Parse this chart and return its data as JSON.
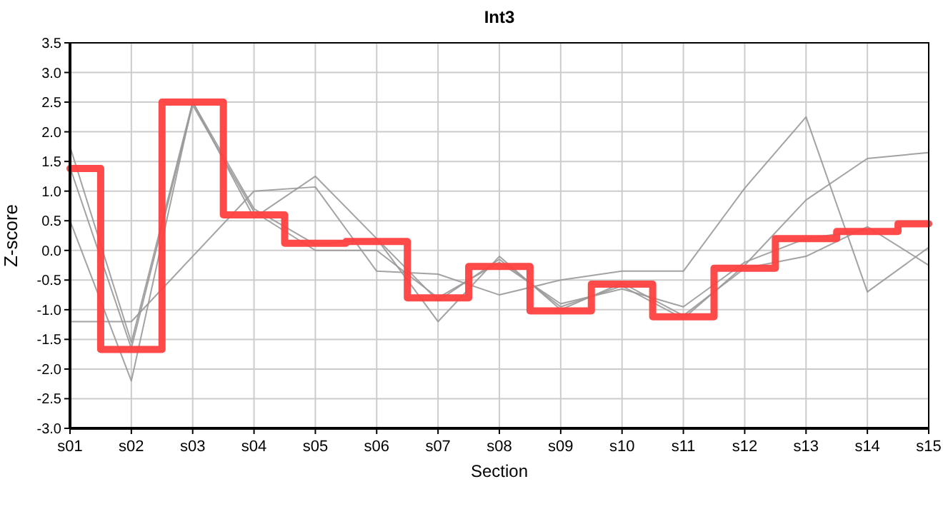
{
  "chart_data": {
    "type": "line",
    "title": "Int3",
    "xlabel": "Section",
    "ylabel": "Z-score",
    "categories": [
      "s01",
      "s02",
      "s03",
      "s04",
      "s05",
      "s06",
      "s07",
      "s08",
      "s09",
      "s10",
      "s11",
      "s12",
      "s13",
      "s14",
      "s15"
    ],
    "series": [
      {
        "color": "#999999",
        "values": [
          1.75,
          -1.55,
          2.5,
          0.7,
          0.1,
          0.2,
          -0.85,
          -0.15,
          -0.95,
          -0.6,
          -1.15,
          -0.25,
          0.85,
          1.55,
          1.65
        ]
      },
      {
        "color": "#999999",
        "values": [
          1.4,
          -1.65,
          2.45,
          0.65,
          0.0,
          0.0,
          -0.8,
          -0.2,
          -0.9,
          -0.65,
          -0.95,
          -0.2,
          0.2,
          0.35,
          null
        ]
      },
      {
        "color": "#999999",
        "values": [
          0.5,
          -2.2,
          2.5,
          0.55,
          1.25,
          0.2,
          -1.2,
          -0.1,
          -1.0,
          -0.55,
          -1.1,
          -0.3,
          -0.1,
          0.4,
          -0.25
        ]
      },
      {
        "color": "#999999",
        "values": [
          -1.2,
          -1.2,
          -0.1,
          1.0,
          1.07,
          -0.35,
          -0.4,
          -0.75,
          -0.5,
          -0.35,
          -0.35,
          1.05,
          2.25,
          -0.7,
          0.05
        ]
      },
      {
        "type": "step",
        "color": "#ff4040",
        "values": [
          1.38,
          -1.67,
          2.5,
          0.6,
          0.12,
          0.15,
          -0.8,
          -0.27,
          -1.02,
          -0.57,
          -1.12,
          -0.3,
          0.2,
          0.32,
          0.45
        ]
      }
    ],
    "ylim": [
      -3,
      3.5
    ],
    "yticks": [
      {
        "value": -3,
        "label": "-3.0"
      },
      {
        "value": -2.5,
        "label": "-2.5"
      },
      {
        "value": -2,
        "label": "-2.0"
      },
      {
        "value": -1.5,
        "label": "-1.5"
      },
      {
        "value": -1,
        "label": "-1.0"
      },
      {
        "value": -0.5,
        "label": "-0.5"
      },
      {
        "value": 0,
        "label": "0.0"
      },
      {
        "value": 0.5,
        "label": "0.5"
      },
      {
        "value": 1,
        "label": "1.0"
      },
      {
        "value": 1.5,
        "label": "1.5"
      },
      {
        "value": 2,
        "label": "2.0"
      },
      {
        "value": 2.5,
        "label": "2.5"
      },
      {
        "value": 3,
        "label": "3.0"
      },
      {
        "value": 3.5,
        "label": "3.5"
      }
    ],
    "grid": true,
    "marker": "none",
    "line_style": "solid"
  }
}
